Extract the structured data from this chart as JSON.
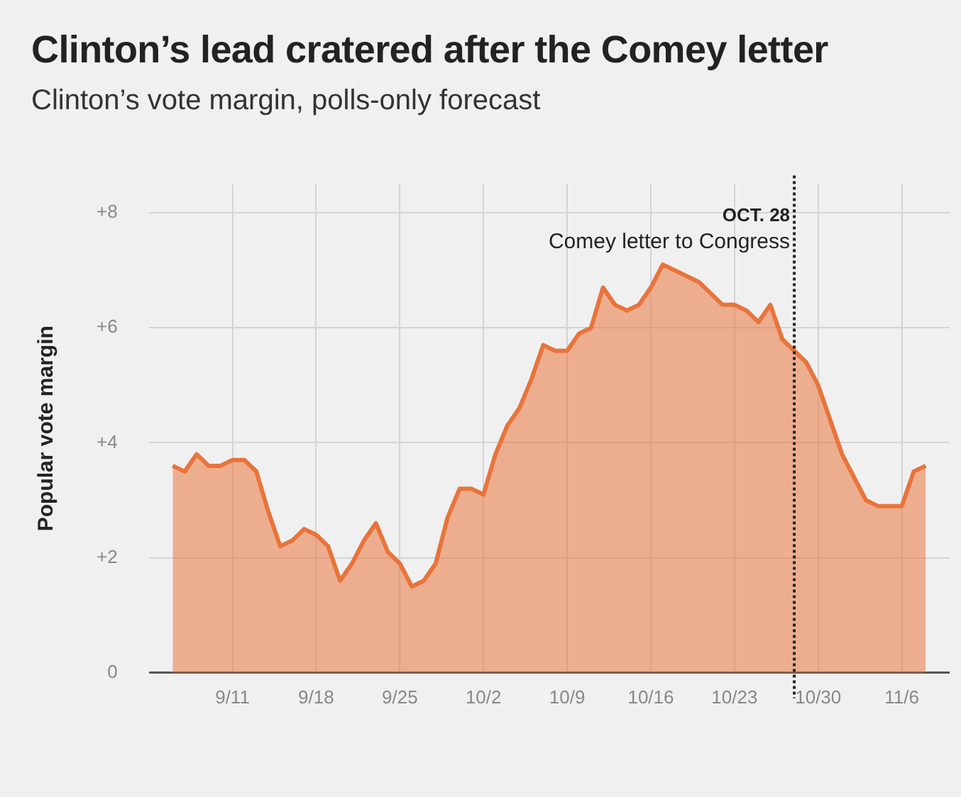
{
  "chart_data": {
    "type": "area",
    "title": "Clinton’s lead cratered after the Comey letter",
    "subtitle": "Clinton’s vote margin, polls-only forecast",
    "ylabel": "Popular vote margin",
    "x": [
      "--09-06",
      "--09-07",
      "--09-08",
      "--09-09",
      "--09-10",
      "--09-11",
      "--09-12",
      "--09-13",
      "--09-14",
      "--09-15",
      "--09-16",
      "--09-17",
      "--09-18",
      "--09-19",
      "--09-20",
      "--09-21",
      "--09-22",
      "--09-23",
      "--09-24",
      "--09-25",
      "--09-26",
      "--09-27",
      "--09-28",
      "--09-29",
      "--09-30",
      "--10-01",
      "--10-02",
      "--10-03",
      "--10-04",
      "--10-05",
      "--10-06",
      "--10-07",
      "--10-08",
      "--10-09",
      "--10-10",
      "--10-11",
      "--10-12",
      "--10-13",
      "--10-14",
      "--10-15",
      "--10-16",
      "--10-17",
      "--10-18",
      "--10-19",
      "--10-20",
      "--10-21",
      "--10-22",
      "--10-23",
      "--10-24",
      "--10-25",
      "--10-26",
      "--10-27",
      "--10-28",
      "--10-29",
      "--10-30",
      "--10-31",
      "--11-01",
      "--11-02",
      "--11-03",
      "--11-04",
      "--11-05",
      "--11-06",
      "--11-07",
      "--11-08"
    ],
    "series": [
      {
        "color": "#e8743b",
        "values": [
          3.6,
          3.5,
          3.8,
          3.6,
          3.6,
          3.7,
          3.7,
          3.5,
          2.8,
          2.2,
          2.3,
          2.5,
          2.4,
          2.2,
          1.6,
          1.9,
          2.3,
          2.6,
          2.1,
          1.9,
          1.5,
          1.6,
          1.9,
          2.7,
          3.2,
          3.2,
          3.1,
          3.8,
          4.3,
          4.6,
          5.1,
          5.7,
          5.6,
          5.6,
          5.9,
          6.0,
          6.7,
          6.4,
          6.3,
          6.4,
          6.7,
          7.1,
          7.0,
          6.9,
          6.8,
          6.6,
          6.4,
          6.4,
          6.3,
          6.1,
          6.4,
          5.8,
          5.6,
          5.4,
          5.0,
          4.4,
          3.8,
          3.4,
          3.0,
          2.9,
          2.9,
          2.9,
          3.5,
          3.6
        ]
      }
    ],
    "xlim": [
      "--09-04",
      "--11-10"
    ],
    "xticks": [
      {
        "value": "--09-11",
        "label": "9/11"
      },
      {
        "value": "--09-18",
        "label": "9/18"
      },
      {
        "value": "--09-25",
        "label": "9/25"
      },
      {
        "value": "--10-02",
        "label": "10/2"
      },
      {
        "value": "--10-09",
        "label": "10/9"
      },
      {
        "value": "--10-16",
        "label": "10/16"
      },
      {
        "value": "--10-23",
        "label": "10/23"
      },
      {
        "value": "--10-30",
        "label": "10/30"
      },
      {
        "value": "--11-06",
        "label": "11/6"
      }
    ],
    "ylim": [
      0,
      8.5
    ],
    "yticks": [
      0,
      {
        "value": 2,
        "label": "+2"
      },
      {
        "value": 4,
        "label": "+4"
      },
      {
        "value": 6,
        "label": "+6"
      },
      {
        "value": 8,
        "label": "+8"
      }
    ],
    "grid": true,
    "ref_lines": [
      {
        "axis": "x",
        "value": "--10-28",
        "label": "OCT. 28\nComey letter to Congress",
        "line_style": "dotted",
        "color": "#222222"
      }
    ]
  }
}
